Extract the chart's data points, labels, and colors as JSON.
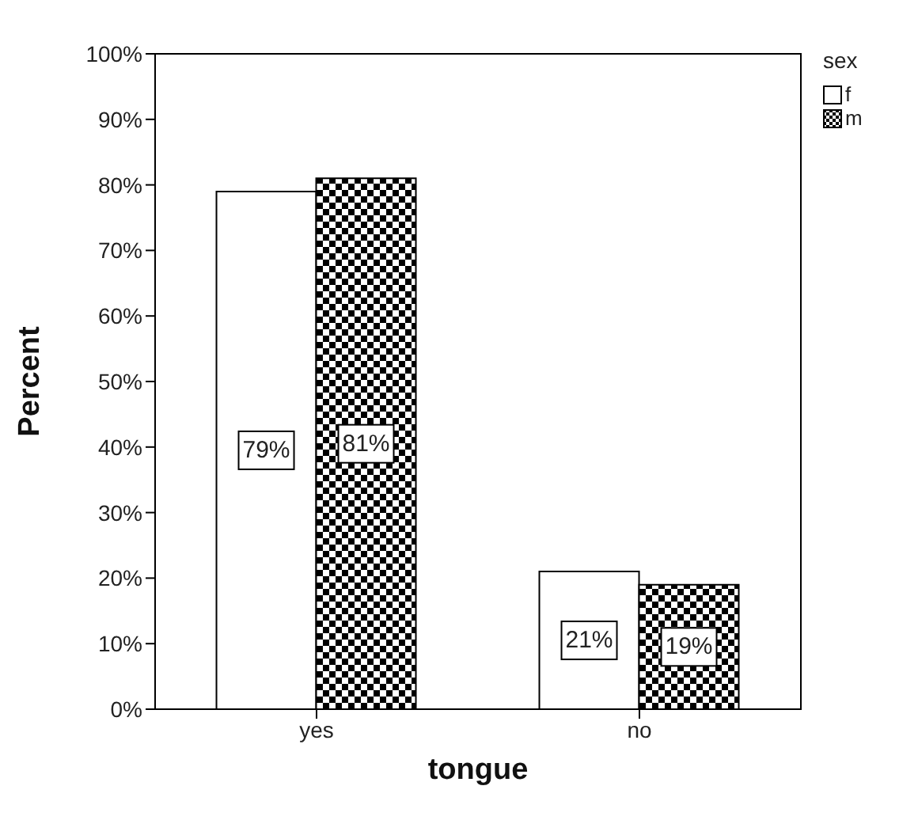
{
  "chart_data": {
    "type": "bar",
    "xlabel": "tongue",
    "ylabel": "Percent",
    "legend_title": "sex",
    "categories": [
      "yes",
      "no"
    ],
    "series": [
      {
        "name": "f",
        "color": "#ffffff",
        "values": [
          79,
          21
        ],
        "value_labels": [
          "79%",
          "21%"
        ]
      },
      {
        "name": "m",
        "color": "#000000",
        "values": [
          81,
          19
        ],
        "value_labels": [
          "81%",
          "19%"
        ]
      }
    ],
    "ylim": [
      0,
      100
    ],
    "yticks": [
      {
        "value": 0,
        "label": "0%"
      },
      {
        "value": 10,
        "label": "10%"
      },
      {
        "value": 20,
        "label": "20%"
      },
      {
        "value": 30,
        "label": "30%"
      },
      {
        "value": 40,
        "label": "40%"
      },
      {
        "value": 50,
        "label": "50%"
      },
      {
        "value": 60,
        "label": "60%"
      },
      {
        "value": 70,
        "label": "70%"
      },
      {
        "value": 80,
        "label": "80%"
      },
      {
        "value": 90,
        "label": "90%"
      },
      {
        "value": 100,
        "label": "100%"
      }
    ],
    "grid": false,
    "legend": "top right"
  }
}
